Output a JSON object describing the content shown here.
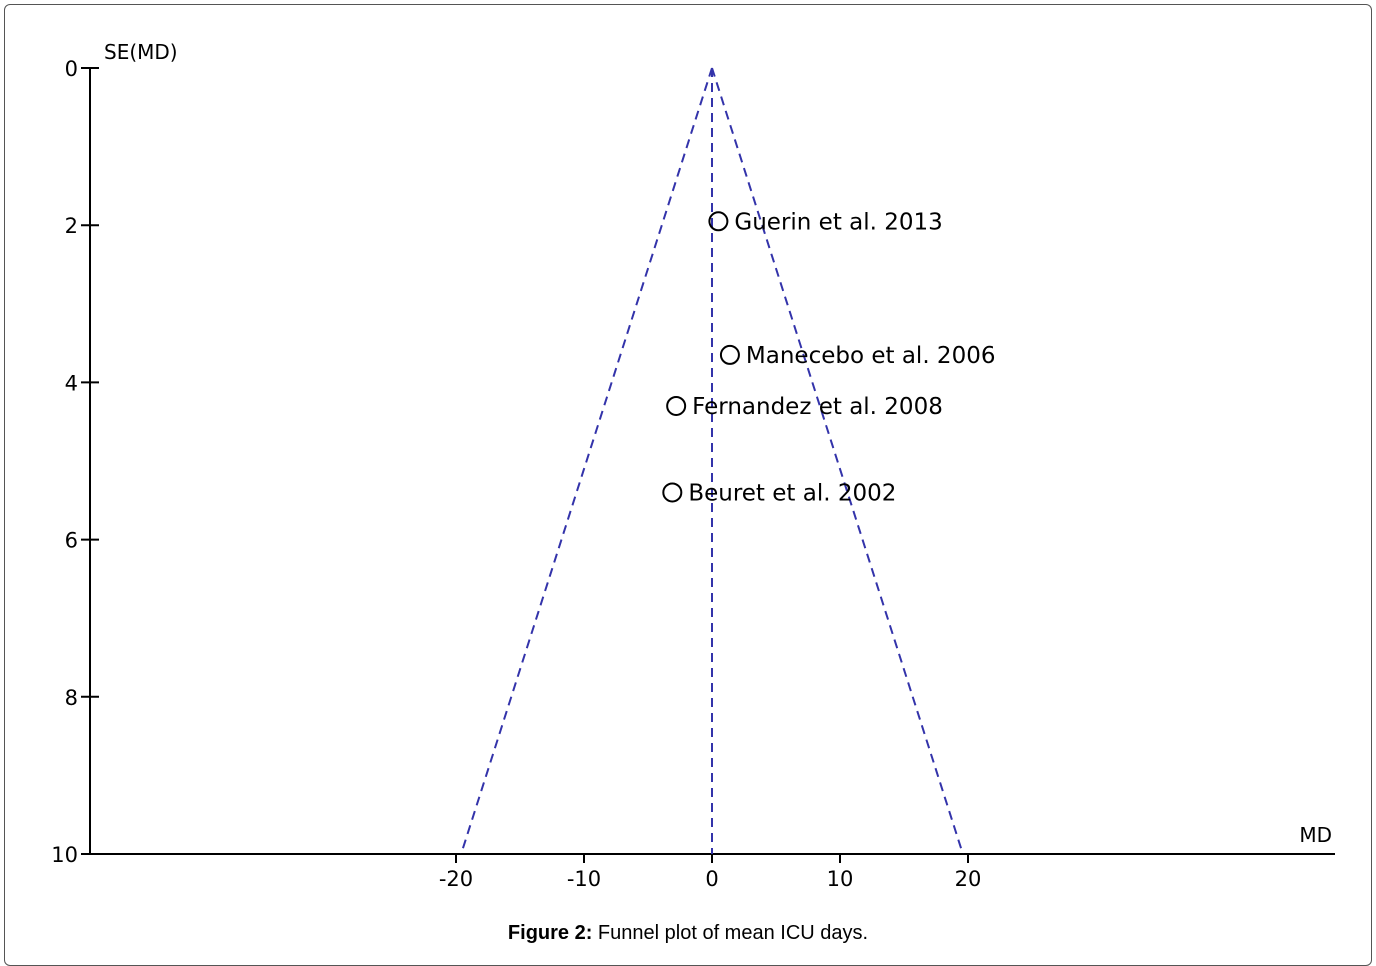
{
  "caption": {
    "label": "Figure 2:",
    "text": " Funnel plot of mean ICU days."
  },
  "chart_data": {
    "type": "scatter",
    "title": "",
    "xlabel": "MD",
    "ylabel": "SE(MD)",
    "xlim": [
      -20,
      20
    ],
    "ylim": [
      0,
      10
    ],
    "y_inverted": true,
    "x_ticks": [
      -20,
      -10,
      0,
      10,
      20
    ],
    "y_ticks": [
      0,
      2,
      4,
      6,
      8,
      10
    ],
    "x_tick_labels": [
      "-20",
      "-10",
      "0",
      "10",
      "20"
    ],
    "y_tick_labels": [
      "0",
      "2",
      "4",
      "6",
      "8",
      "10"
    ],
    "funnel": {
      "center_md": 0,
      "apex_se": 0,
      "bottom_se": 10,
      "bottom_left_md": -19.6,
      "bottom_right_md": 19.6,
      "line_color": "#3333aa",
      "line_style": "dashed"
    },
    "points": [
      {
        "label": "Guerin et al. 2013",
        "md": 0.5,
        "se": 1.95
      },
      {
        "label": "Manecebo et al. 2006",
        "md": 1.4,
        "se": 3.65
      },
      {
        "label": "Fernandez et al. 2008",
        "md": -2.8,
        "se": 4.3
      },
      {
        "label": "Beuret et al. 2002",
        "md": -3.1,
        "se": 5.4
      }
    ],
    "marker": "open-circle",
    "marker_color": "#000000"
  }
}
